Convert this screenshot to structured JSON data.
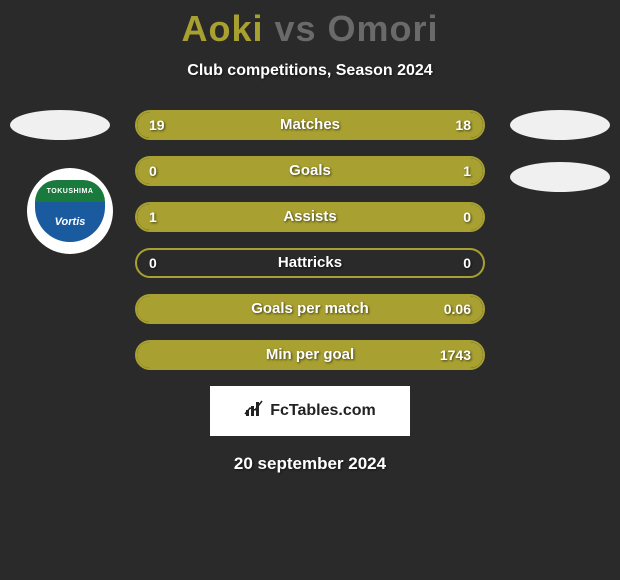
{
  "title": {
    "text": "Aoki vs Omori",
    "player1_color": "#a8a030",
    "player2_color": "#6a6a6a"
  },
  "subtitle": "Club competitions, Season 2024",
  "team_logo": {
    "top_text": "TOKUSHIMA",
    "bottom_text": "Vortis",
    "top_color": "#1a7a3e",
    "bottom_color": "#1a5a9e"
  },
  "bars": {
    "border_color": "#a8a030",
    "fill_color": "#a8a030",
    "empty_color": "transparent",
    "items": [
      {
        "label": "Matches",
        "left_val": "19",
        "right_val": "18",
        "left_pct": 51,
        "right_pct": 49
      },
      {
        "label": "Goals",
        "left_val": "0",
        "right_val": "1",
        "left_pct": 0,
        "right_pct": 100
      },
      {
        "label": "Assists",
        "left_val": "1",
        "right_val": "0",
        "left_pct": 100,
        "right_pct": 0
      },
      {
        "label": "Hattricks",
        "left_val": "0",
        "right_val": "0",
        "left_pct": 0,
        "right_pct": 0
      },
      {
        "label": "Goals per match",
        "left_val": "",
        "right_val": "0.06",
        "left_pct": 0,
        "right_pct": 100
      },
      {
        "label": "Min per goal",
        "left_val": "",
        "right_val": "1743",
        "left_pct": 0,
        "right_pct": 100
      }
    ]
  },
  "branding": "FcTables.com",
  "date": "20 september 2024",
  "colors": {
    "background": "#2a2a2a"
  }
}
